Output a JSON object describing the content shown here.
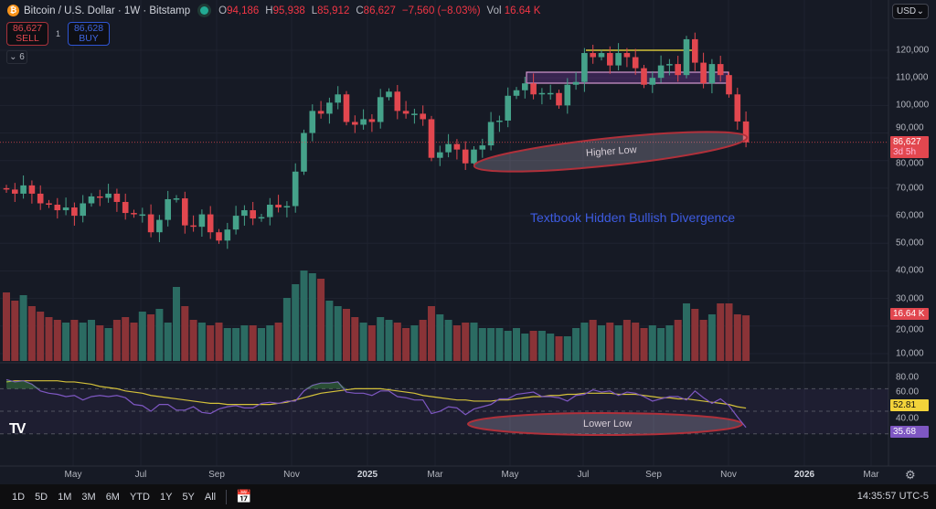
{
  "header": {
    "coin_icon": "bitcoin-icon",
    "symbol": "Bitcoin / U.S. Dollar · 1W · Bitstamp",
    "open_label": "O",
    "open": "94,186",
    "high_label": "H",
    "high": "95,938",
    "low_label": "L",
    "low": "85,912",
    "close_label": "C",
    "close": "86,627",
    "change": "−7,560 (−8.03%)",
    "vol_label": "Vol",
    "vol": "16.64 K"
  },
  "trade": {
    "sell_price": "86,627",
    "sell_label": "SELL",
    "qty": "1",
    "buy_price": "86,628",
    "buy_label": "BUY"
  },
  "indicators_toggle": "6",
  "currency": "USD",
  "colors": {
    "up": "#45a28a",
    "down": "#e2474f",
    "vol_up": "#2b6b62",
    "vol_down": "#8a3337",
    "rsi": "#7e57c2",
    "rsi_ma": "#d4c13a",
    "bg": "#161a25",
    "annotation": "#3d5be0"
  },
  "price_tag": {
    "value": "86,627",
    "countdown": "3d 5h"
  },
  "vol_tag": "16.64 K",
  "rsi_tag": "35.68",
  "rsi_ma_tag": "52.81",
  "annotations": {
    "higher_low": "Higher Low",
    "lower_low": "Lower Low",
    "divergence": "Textbook Hidden Bullish Divergence"
  },
  "time_axis": [
    "May",
    "Jul",
    "Sep",
    "Nov",
    "2025",
    "Mar",
    "May",
    "Jul",
    "Sep",
    "Nov",
    "2026",
    "Mar"
  ],
  "ranges": [
    "1D",
    "5D",
    "1M",
    "3M",
    "6M",
    "YTD",
    "1Y",
    "5Y",
    "All"
  ],
  "clock": "14:35:57 UTC-5",
  "chart_data": {
    "type": "candlestick",
    "title": "Bitcoin / U.S. Dollar · 1W · Bitstamp",
    "price_unit": "thousand USD",
    "price_axis_ticks": [
      "120,000",
      "110,000",
      "100,000",
      "90,000",
      "80,000",
      "70,000",
      "60,000",
      "50,000",
      "40,000",
      "30,000",
      "20,000",
      "10,000"
    ],
    "rsi_axis_ticks": [
      "80.00",
      "60.00",
      "40.00"
    ],
    "rsi_bands": [
      70,
      50,
      30
    ],
    "opens": [
      70,
      69.5,
      68,
      71,
      68,
      64.5,
      64,
      62,
      63,
      60,
      64.5,
      67,
      66.5,
      68,
      65,
      61,
      60.5,
      60.5,
      54,
      58.5,
      66,
      66.3,
      56.5,
      56,
      60.5,
      54,
      51,
      55,
      60,
      62,
      59,
      59.5,
      64,
      63,
      63.5,
      76,
      90,
      98,
      97,
      101,
      104,
      94,
      93,
      95,
      94,
      103,
      105,
      98,
      97,
      97,
      95,
      81,
      83,
      86,
      84,
      79,
      84,
      85.5,
      94,
      94.5,
      103.5,
      105.5,
      108,
      104,
      104.5,
      104.5,
      100,
      107.5,
      108.5,
      119,
      117.5,
      119,
      114.5,
      119,
      117.5,
      113.5,
      107.5,
      110,
      114.5,
      115,
      111,
      124,
      115.5,
      108,
      115,
      111,
      104,
      94.19
    ],
    "closes": [
      69.5,
      68,
      71,
      68,
      64.5,
      64,
      62,
      63,
      60,
      64.5,
      67,
      66.5,
      68,
      65,
      61,
      60.5,
      60.5,
      54,
      58.5,
      66,
      66.3,
      56.5,
      56,
      60.5,
      54,
      51,
      55,
      60,
      62,
      59,
      59.5,
      64,
      63,
      63.5,
      76,
      90,
      98,
      97,
      101,
      104,
      94,
      93,
      95,
      94,
      103,
      105,
      98,
      97,
      97,
      95,
      81,
      83,
      86,
      84,
      79,
      84,
      85.5,
      94,
      94.5,
      103.5,
      105.5,
      108,
      104,
      104.5,
      104.5,
      100,
      107.5,
      108.5,
      119,
      117.5,
      119,
      114.5,
      119,
      117.5,
      113.5,
      107.5,
      110,
      114.5,
      115,
      111,
      124,
      115.5,
      108,
      115,
      111,
      104,
      94.19,
      86.63
    ],
    "volumes_k": [
      25,
      22,
      24,
      20,
      18,
      16,
      15,
      14,
      15,
      14,
      15,
      13,
      12,
      15,
      16,
      14,
      18,
      17,
      19,
      14,
      27,
      20,
      15,
      14,
      13,
      14,
      12,
      12,
      13,
      13,
      12,
      13,
      14,
      23,
      28,
      33,
      32,
      30,
      22,
      20,
      19,
      16,
      14,
      13,
      16,
      15,
      14,
      12,
      13,
      15,
      20,
      17,
      15,
      13,
      14,
      14,
      12,
      12,
      12,
      11,
      12,
      10,
      11,
      11,
      10,
      9,
      9,
      12,
      14,
      15,
      13,
      14,
      13,
      15,
      14,
      12,
      13,
      12,
      13,
      15,
      21,
      19,
      15,
      17,
      21,
      21,
      17,
      16.64
    ],
    "rsi": [
      78,
      76,
      77,
      74,
      68,
      66,
      65,
      63,
      64,
      60,
      63,
      64,
      63,
      64,
      62,
      56,
      55,
      50,
      56,
      56,
      51,
      51,
      54,
      49,
      48,
      52,
      54,
      55,
      53,
      53,
      57,
      58,
      57,
      59,
      59,
      68,
      73,
      75,
      75,
      76,
      67,
      66,
      66,
      64,
      68,
      68,
      63,
      62,
      60,
      60,
      48,
      50,
      54,
      53,
      47,
      52,
      54,
      56,
      61,
      61,
      65,
      66,
      67,
      63,
      63,
      62,
      59,
      64,
      65,
      69,
      67,
      68,
      64,
      67,
      66,
      63,
      59,
      61,
      63,
      63,
      60,
      68,
      62,
      57,
      61,
      55,
      45,
      35.68
    ],
    "rsi_ma": [
      76,
      77,
      77,
      77,
      77,
      77,
      77,
      76,
      76,
      75,
      74,
      72,
      71,
      70,
      68,
      67,
      66,
      64,
      63,
      62,
      61,
      60,
      59,
      58,
      57,
      57,
      56,
      56,
      56,
      56,
      56,
      56,
      57,
      58,
      60,
      62,
      64,
      66,
      67,
      68,
      69,
      70,
      70,
      70,
      70,
      69,
      68,
      67,
      66,
      64,
      63,
      62,
      61,
      60,
      60,
      59,
      59,
      59,
      60,
      60,
      61,
      62,
      63,
      63,
      64,
      64,
      65,
      65,
      66,
      66,
      66,
      66,
      65,
      65,
      65,
      64,
      63,
      62,
      62,
      61,
      61,
      60,
      59,
      58,
      57,
      56,
      54,
      52.81
    ]
  }
}
